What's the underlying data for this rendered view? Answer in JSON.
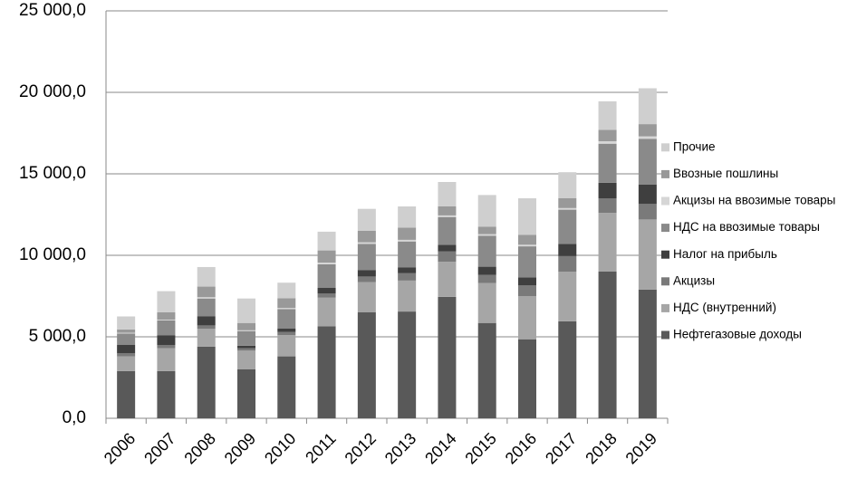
{
  "chart_data": {
    "type": "stacked_bar",
    "categories": [
      "2006",
      "2007",
      "2008",
      "2009",
      "2010",
      "2011",
      "2012",
      "2013",
      "2014",
      "2015",
      "2016",
      "2017",
      "2018",
      "2019"
    ],
    "series": [
      {
        "name": "Нефтегазовые доходы",
        "color": "#595959",
        "values": [
          2900,
          2900,
          4400,
          3000,
          3800,
          5650,
          6500,
          6550,
          7450,
          5850,
          4850,
          5950,
          9000,
          7900
        ]
      },
      {
        "name": "НДС (внутренний)",
        "color": "#a6a6a6",
        "values": [
          900,
          1400,
          1100,
          1150,
          1300,
          1750,
          1850,
          1900,
          2150,
          2450,
          2650,
          3050,
          3600,
          4300
        ]
      },
      {
        "name": "Акцизы",
        "color": "#7a7a7a",
        "values": [
          200,
          200,
          200,
          150,
          200,
          250,
          350,
          450,
          650,
          500,
          650,
          950,
          900,
          950
        ]
      },
      {
        "name": "Налог на прибыль",
        "color": "#3f3f3f",
        "values": [
          500,
          600,
          550,
          150,
          200,
          350,
          400,
          350,
          400,
          500,
          500,
          750,
          950,
          1200
        ]
      },
      {
        "name": "НДС на ввозимые товары",
        "color": "#8a8a8a",
        "values": [
          700,
          900,
          1100,
          900,
          1200,
          1450,
          1600,
          1600,
          1700,
          1900,
          1900,
          2100,
          2400,
          2800
        ]
      },
      {
        "name": "Акцизы на ввозимые товары",
        "color": "#d6d6d6",
        "values": [
          50,
          50,
          80,
          50,
          70,
          100,
          100,
          100,
          100,
          100,
          100,
          100,
          150,
          150
        ]
      },
      {
        "name": "Ввозные пошлины",
        "color": "#999999",
        "values": [
          200,
          450,
          650,
          450,
          600,
          750,
          700,
          750,
          550,
          450,
          600,
          600,
          700,
          750
        ]
      },
      {
        "name": "Прочие",
        "color": "#cfcfcf",
        "values": [
          800,
          1300,
          1200,
          1500,
          950,
          1150,
          1350,
          1300,
          1500,
          1950,
          2250,
          1600,
          1750,
          2200
        ]
      }
    ],
    "ylim": [
      0,
      25000
    ],
    "yticks": [
      {
        "value": 0,
        "label": "0,0"
      },
      {
        "value": 5000,
        "label": "5 000,0"
      },
      {
        "value": 10000,
        "label": "10 000,0"
      },
      {
        "value": 15000,
        "label": "15 000,0"
      },
      {
        "value": 20000,
        "label": "20 000,0"
      },
      {
        "value": 25000,
        "label": "25 000,0"
      }
    ],
    "grid": true,
    "legend": "right"
  }
}
